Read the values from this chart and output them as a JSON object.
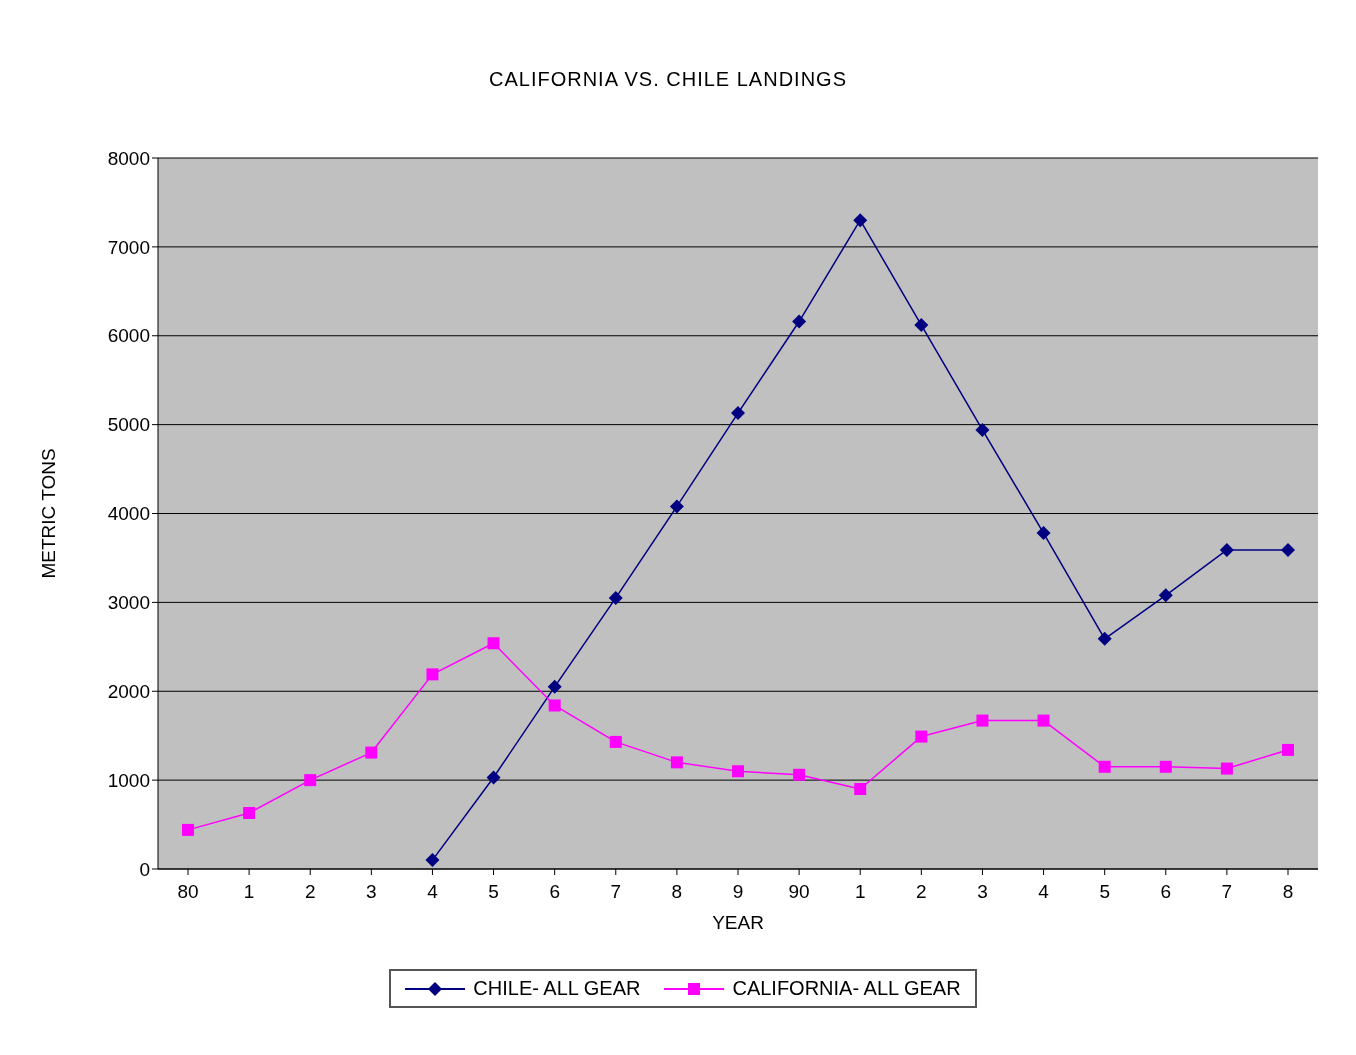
{
  "chart_data": {
    "type": "line",
    "title": "CALIFORNIA VS. CHILE LANDINGS",
    "xlabel": "YEAR",
    "ylabel": "METRIC TONS",
    "categories": [
      "80",
      "1",
      "2",
      "3",
      "4",
      "5",
      "6",
      "7",
      "8",
      "9",
      "90",
      "1",
      "2",
      "3",
      "4",
      "5",
      "6",
      "7",
      "8"
    ],
    "series": [
      {
        "name": "CHILE- ALL GEAR",
        "color": "#000080",
        "marker": "diamond",
        "values": [
          null,
          null,
          null,
          null,
          100,
          1030,
          2050,
          3050,
          4080,
          5130,
          6160,
          7300,
          6120,
          4940,
          3780,
          2590,
          3080,
          3590,
          3590
        ]
      },
      {
        "name": "CALIFORNIA- ALL GEAR",
        "color": "#ff00ff",
        "marker": "square",
        "values": [
          440,
          630,
          1000,
          1310,
          2190,
          2540,
          1840,
          1430,
          1200,
          1100,
          1060,
          900,
          1490,
          1670,
          1670,
          1150,
          1150,
          1130,
          1340
        ]
      }
    ],
    "ylim": [
      0,
      8000
    ],
    "yticks": [
      0,
      1000,
      2000,
      3000,
      4000,
      5000,
      6000,
      7000,
      8000
    ],
    "grid": "y",
    "legend": "bottom"
  }
}
